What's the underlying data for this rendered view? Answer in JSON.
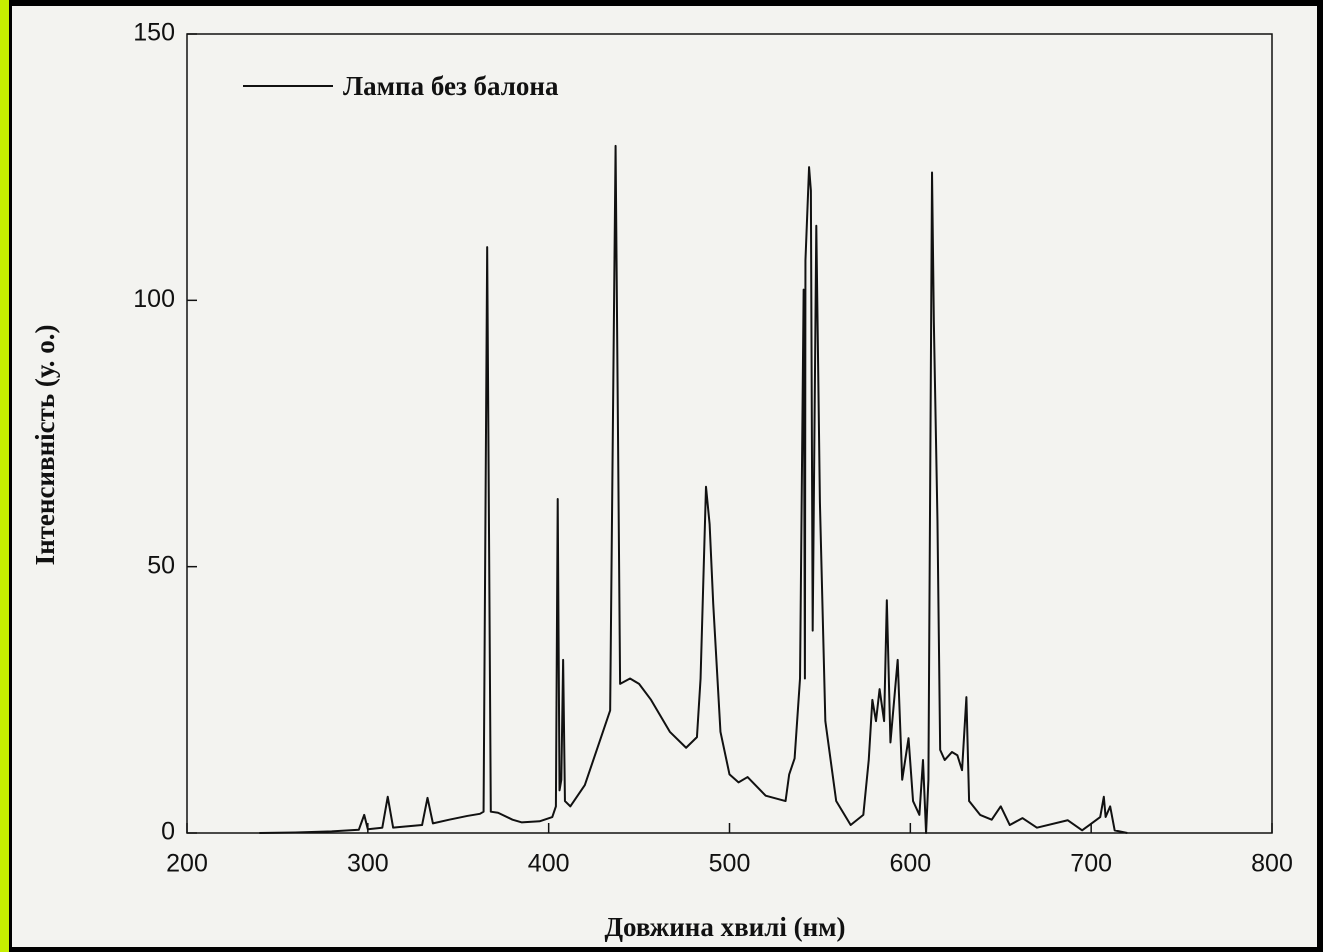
{
  "chart_data": {
    "type": "line",
    "x_label": "Довжина хвилі (нм)",
    "y_label": "Інтенсивність (у. о.)",
    "xlim": [
      200,
      800
    ],
    "xticks": [
      200,
      300,
      400,
      500,
      600,
      700,
      800
    ],
    "ylim": [
      0,
      150
    ],
    "yticks": [
      0,
      50,
      100,
      150
    ],
    "legend": "upper left",
    "series": [
      {
        "name": "Лампа без балона",
        "color": "#111111",
        "x": [
          240,
          260,
          280,
          295,
          298,
          300,
          308,
          311,
          314,
          320,
          330,
          333,
          336,
          345,
          355,
          362,
          364,
          366,
          368,
          372,
          380,
          385,
          395,
          402,
          404,
          405,
          406,
          407,
          408,
          409,
          412,
          420,
          428,
          434,
          437,
          439.5,
          445,
          450,
          456.6,
          467,
          476,
          482,
          484,
          487,
          489,
          491,
          495,
          500,
          505,
          510,
          520,
          531,
          533,
          536,
          539,
          541,
          541.7,
          542,
          544,
          545,
          546,
          548,
          550,
          553,
          559,
          567,
          574,
          577,
          579,
          581,
          583,
          585.5,
          587,
          589,
          593,
          595.5,
          599,
          601.5,
          605,
          607,
          608.7,
          610,
          612,
          613,
          615,
          616.5,
          619,
          623,
          626,
          628.6,
          631,
          632.5,
          638.6,
          645,
          650,
          655,
          662,
          670,
          687,
          695,
          699,
          705,
          707,
          708,
          710.5,
          713,
          720
        ],
        "values": [
          0,
          0.1,
          0.3,
          0.6,
          3.4,
          0.7,
          1,
          6.8,
          1,
          1.2,
          1.5,
          6.6,
          1.8,
          2.5,
          3.2,
          3.6,
          4,
          110,
          4,
          3.8,
          2.5,
          2,
          2.2,
          3,
          5,
          62.7,
          8,
          10,
          32.5,
          6,
          5,
          9,
          17,
          23,
          129,
          28,
          29,
          28,
          25,
          19,
          16,
          18,
          29,
          65,
          58,
          43,
          19,
          11,
          9.5,
          10.5,
          7,
          6,
          11,
          14,
          29,
          102,
          29,
          107.5,
          125,
          120.6,
          38,
          114,
          62,
          21,
          6,
          1.5,
          3.4,
          13.7,
          25,
          21,
          27,
          21,
          43.7,
          17,
          32.5,
          10,
          17.8,
          6,
          3.4,
          13.7,
          0,
          10,
          124,
          96,
          58.7,
          15.6,
          13.7,
          15.2,
          14.6,
          11.8,
          25.5,
          6,
          3.4,
          2.5,
          5,
          1.5,
          2.8,
          1,
          2.4,
          0.5,
          1.5,
          3,
          6.8,
          3,
          5,
          0.5,
          0
        ]
      }
    ]
  }
}
